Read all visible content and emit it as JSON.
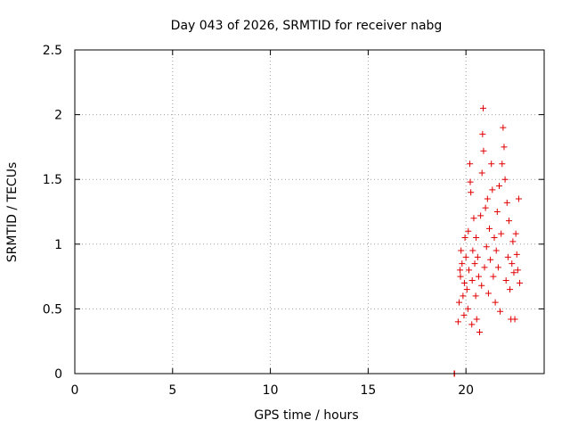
{
  "chart_data": {
    "type": "scatter",
    "title": "Day 043 of 2026, SRMTID for receiver nabg",
    "xlabel": "GPS time / hours",
    "ylabel": "SRMTID / TECUs",
    "xlim": [
      0,
      24
    ],
    "ylim": [
      0,
      2.5
    ],
    "xticks": [
      0,
      5,
      10,
      15,
      20
    ],
    "yticks": [
      0,
      0.5,
      1,
      1.5,
      2,
      2.5
    ],
    "xtick_labels": [
      "0",
      "5",
      "10",
      "15",
      "20"
    ],
    "ytick_labels": [
      "0",
      "0.5",
      "1",
      "1.5",
      "2",
      "2.5"
    ],
    "grid": true,
    "marker_color": "#e00000",
    "series": [
      {
        "name": "nabg",
        "marker": "plus",
        "points": [
          [
            19.4,
            0.0
          ],
          [
            19.42,
            0.0
          ],
          [
            19.6,
            0.4
          ],
          [
            19.65,
            0.55
          ],
          [
            19.7,
            0.8
          ],
          [
            19.72,
            0.75
          ],
          [
            19.75,
            0.95
          ],
          [
            19.8,
            0.85
          ],
          [
            19.85,
            0.6
          ],
          [
            19.9,
            0.45
          ],
          [
            19.92,
            0.7
          ],
          [
            19.95,
            1.05
          ],
          [
            20.0,
            0.9
          ],
          [
            20.05,
            0.65
          ],
          [
            20.1,
            0.5
          ],
          [
            20.12,
            1.1
          ],
          [
            20.15,
            0.8
          ],
          [
            20.2,
            1.62
          ],
          [
            20.22,
            1.48
          ],
          [
            20.25,
            1.4
          ],
          [
            20.3,
            0.38
          ],
          [
            20.32,
            0.72
          ],
          [
            20.35,
            0.95
          ],
          [
            20.4,
            1.2
          ],
          [
            20.45,
            0.85
          ],
          [
            20.5,
            0.6
          ],
          [
            20.52,
            1.05
          ],
          [
            20.55,
            0.42
          ],
          [
            20.6,
            0.9
          ],
          [
            20.65,
            0.75
          ],
          [
            20.7,
            0.32
          ],
          [
            20.75,
            1.22
          ],
          [
            20.8,
            0.68
          ],
          [
            20.82,
            1.55
          ],
          [
            20.85,
            1.85
          ],
          [
            20.88,
            2.05
          ],
          [
            20.9,
            1.72
          ],
          [
            20.95,
            0.82
          ],
          [
            21.0,
            1.28
          ],
          [
            21.05,
            0.98
          ],
          [
            21.1,
            1.35
          ],
          [
            21.15,
            0.62
          ],
          [
            21.2,
            1.12
          ],
          [
            21.25,
            0.88
          ],
          [
            21.3,
            1.62
          ],
          [
            21.35,
            1.42
          ],
          [
            21.4,
            0.75
          ],
          [
            21.45,
            1.05
          ],
          [
            21.5,
            0.55
          ],
          [
            21.55,
            0.95
          ],
          [
            21.6,
            1.25
          ],
          [
            21.65,
            0.82
          ],
          [
            21.7,
            1.45
          ],
          [
            21.75,
            0.48
          ],
          [
            21.8,
            1.08
          ],
          [
            21.85,
            1.62
          ],
          [
            21.9,
            1.9
          ],
          [
            21.95,
            1.75
          ],
          [
            22.0,
            1.5
          ],
          [
            22.05,
            0.72
          ],
          [
            22.1,
            1.32
          ],
          [
            22.15,
            0.9
          ],
          [
            22.2,
            1.18
          ],
          [
            22.25,
            0.65
          ],
          [
            22.3,
            0.42
          ],
          [
            22.35,
            0.85
          ],
          [
            22.4,
            1.02
          ],
          [
            22.45,
            0.78
          ],
          [
            22.5,
            0.42
          ],
          [
            22.55,
            1.08
          ],
          [
            22.6,
            0.92
          ],
          [
            22.65,
            0.8
          ],
          [
            22.7,
            1.35
          ],
          [
            22.75,
            0.7
          ]
        ]
      }
    ]
  }
}
